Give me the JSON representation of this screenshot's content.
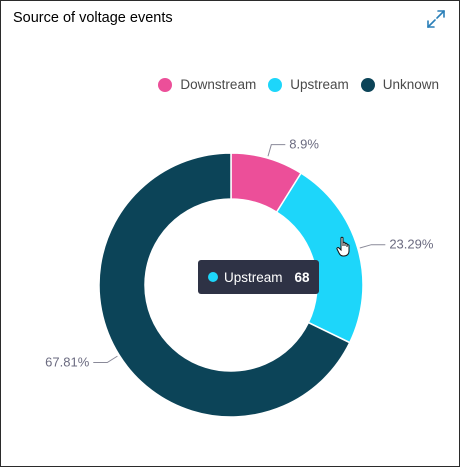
{
  "widget": {
    "title": "Source of voltage events"
  },
  "chart_data": {
    "type": "pie",
    "variant": "donut",
    "legend_position": "top-right",
    "categories": [
      "Downstream",
      "Upstream",
      "Unknown"
    ],
    "values": [
      26,
      68,
      198
    ],
    "percent_labels": [
      "8.9%",
      "23.29%",
      "67.81%"
    ],
    "colors": [
      "#ec4f99",
      "#1dd6fa",
      "#0c4458"
    ]
  },
  "tooltip": {
    "label": "Upstream",
    "value": "68",
    "color": "#1dd6fa"
  },
  "icons": {
    "expand": "expand-icon",
    "cursor": "hand-pointer-icon"
  }
}
